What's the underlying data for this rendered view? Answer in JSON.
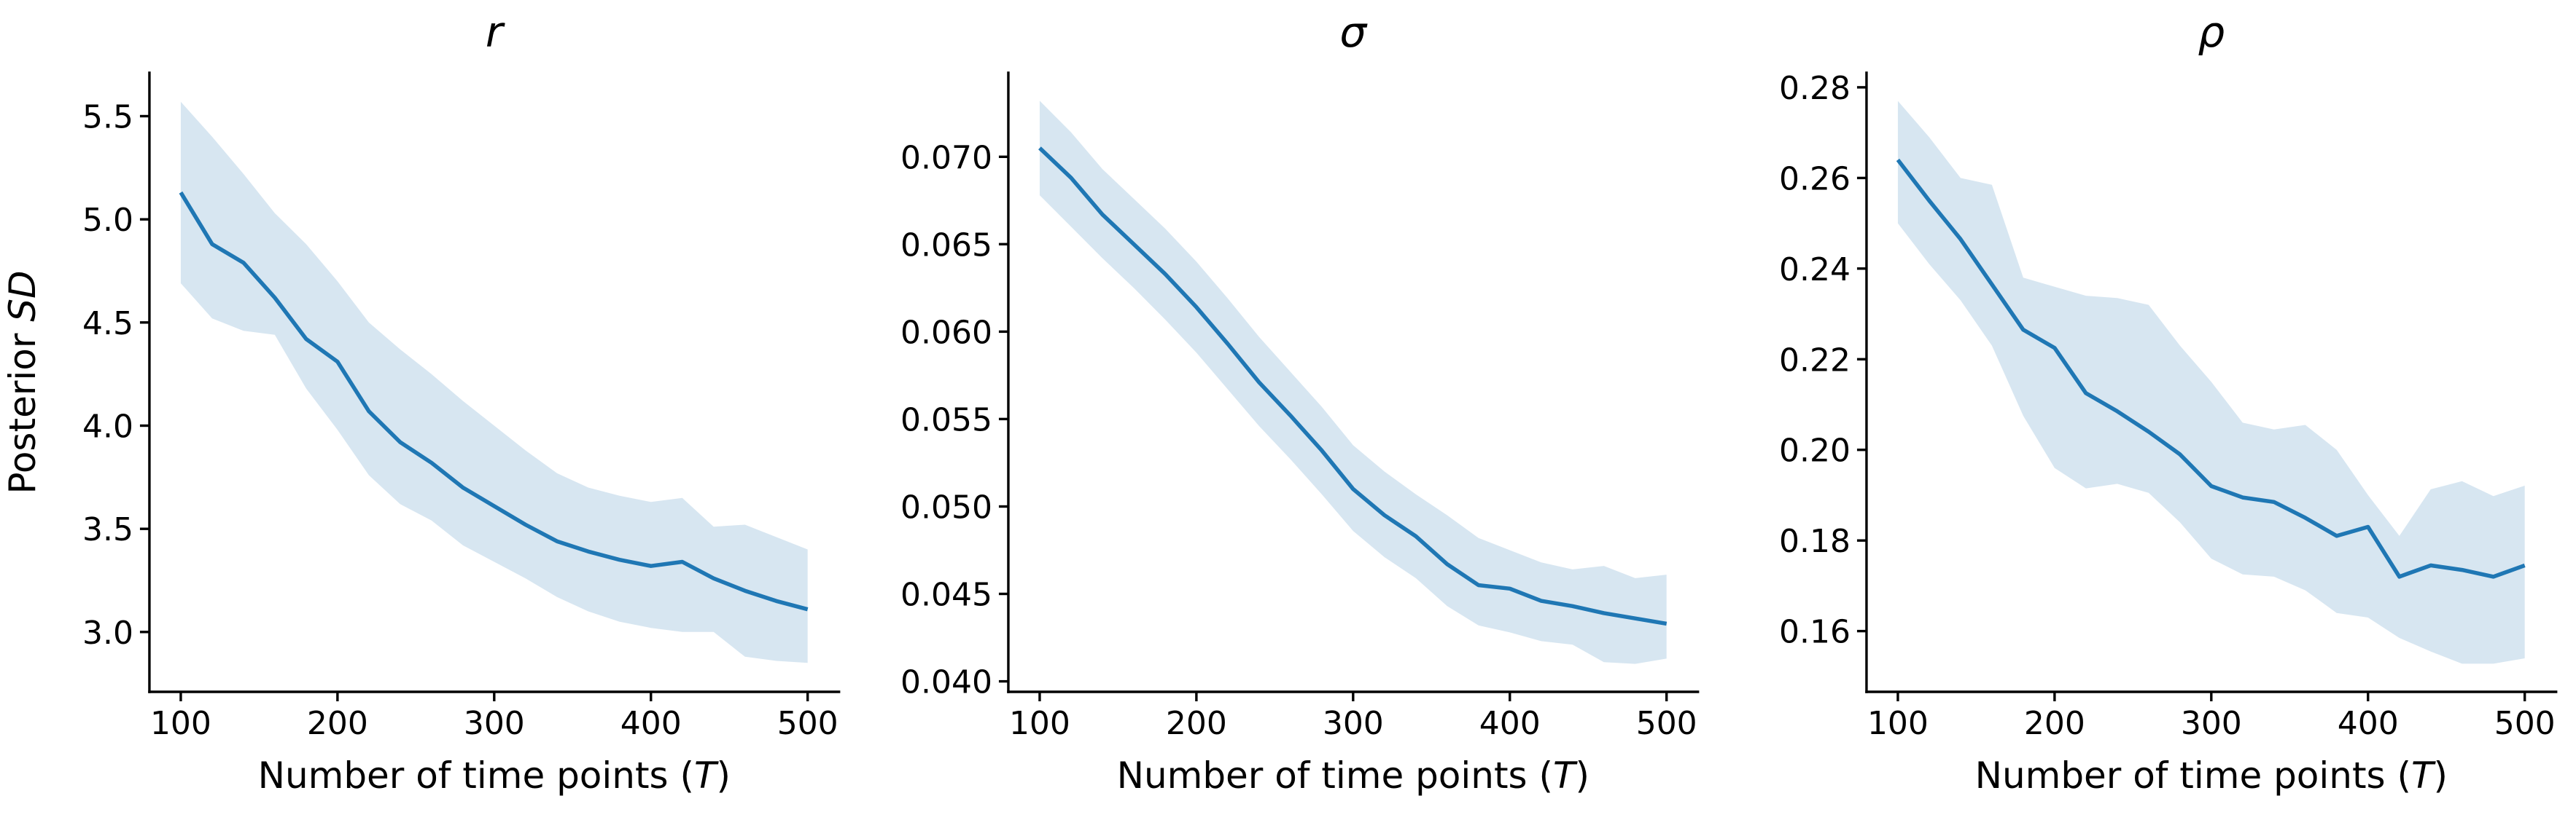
{
  "figure": {
    "background": "#ffffff",
    "axis_color": "#000000",
    "text_color": "#000000",
    "line_color": "#1f77b4",
    "band_color": "#1f77b4",
    "band_opacity": 0.18,
    "ylabel": "Posterior SD",
    "ylabel_parts": [
      "Posterior ",
      "SD"
    ],
    "xlabel": "Number of time points (T)",
    "xlabel_parts": [
      "Number of time points (",
      "T",
      ")"
    ]
  },
  "chart_data": [
    {
      "type": "line",
      "title": "r",
      "ylabel": "Posterior SD",
      "xlabel": "Number of time points (T)",
      "legend_position": "none",
      "grid": false,
      "x": [
        100,
        120,
        140,
        160,
        180,
        200,
        220,
        240,
        260,
        280,
        300,
        320,
        340,
        360,
        380,
        400,
        420,
        440,
        460,
        480,
        500
      ],
      "y": [
        5.13,
        4.88,
        4.79,
        4.62,
        4.42,
        4.31,
        4.07,
        3.92,
        3.82,
        3.7,
        3.61,
        3.52,
        3.44,
        3.39,
        3.35,
        3.32,
        3.34,
        3.26,
        3.2,
        3.15,
        3.11
      ],
      "band_lower": [
        4.69,
        4.52,
        4.46,
        4.44,
        4.18,
        3.98,
        3.76,
        3.62,
        3.54,
        3.42,
        3.34,
        3.26,
        3.17,
        3.1,
        3.05,
        3.02,
        3.0,
        3.0,
        2.88,
        2.86,
        2.85
      ],
      "band_upper": [
        5.57,
        5.4,
        5.22,
        5.03,
        4.88,
        4.7,
        4.5,
        4.37,
        4.25,
        4.12,
        4.0,
        3.88,
        3.77,
        3.7,
        3.66,
        3.63,
        3.65,
        3.51,
        3.52,
        3.46,
        3.4
      ],
      "xticks": [
        100,
        200,
        300,
        400,
        500
      ],
      "xtick_labels": [
        "100",
        "200",
        "300",
        "400",
        "500"
      ],
      "ytick_values": [
        3.0,
        3.5,
        4.0,
        4.5,
        5.0,
        5.5
      ],
      "ytick_labels": [
        "3.0",
        "3.5",
        "4.0",
        "4.5",
        "5.0",
        "5.5"
      ],
      "xlim": [
        80,
        520
      ],
      "ylim": [
        2.71,
        5.71
      ]
    },
    {
      "type": "line",
      "title": "σ",
      "xlabel": "Number of time points (T)",
      "legend_position": "none",
      "grid": false,
      "x": [
        100,
        120,
        140,
        160,
        180,
        200,
        220,
        240,
        260,
        280,
        300,
        320,
        340,
        360,
        380,
        400,
        420,
        440,
        460,
        480,
        500
      ],
      "y": [
        0.0705,
        0.0688,
        0.0667,
        0.065,
        0.0633,
        0.0614,
        0.0593,
        0.0571,
        0.0552,
        0.0532,
        0.051,
        0.0495,
        0.0483,
        0.0467,
        0.0455,
        0.0453,
        0.0446,
        0.0443,
        0.0439,
        0.0436,
        0.0433
      ],
      "band_lower": [
        0.0678,
        0.066,
        0.0642,
        0.0625,
        0.0607,
        0.0588,
        0.0567,
        0.0546,
        0.0527,
        0.0507,
        0.0486,
        0.0471,
        0.0459,
        0.0443,
        0.0432,
        0.0428,
        0.0423,
        0.0421,
        0.0411,
        0.041,
        0.0413
      ],
      "band_upper": [
        0.0732,
        0.0714,
        0.0693,
        0.0676,
        0.0659,
        0.064,
        0.0619,
        0.0597,
        0.0577,
        0.0557,
        0.0535,
        0.052,
        0.0507,
        0.0495,
        0.0482,
        0.0475,
        0.0468,
        0.0464,
        0.0466,
        0.0459,
        0.0461
      ],
      "xticks": [
        100,
        200,
        300,
        400,
        500
      ],
      "xtick_labels": [
        "100",
        "200",
        "300",
        "400",
        "500"
      ],
      "ytick_values": [
        0.04,
        0.045,
        0.05,
        0.055,
        0.06,
        0.065,
        0.07
      ],
      "ytick_labels": [
        "0.040",
        "0.045",
        "0.050",
        "0.055",
        "0.060",
        "0.065",
        "0.070"
      ],
      "xlim": [
        80,
        520
      ],
      "ylim": [
        0.0394,
        0.0748
      ]
    },
    {
      "type": "line",
      "title": "ρ",
      "xlabel": "Number of time points (T)",
      "legend_position": "none",
      "grid": false,
      "x": [
        100,
        120,
        140,
        160,
        180,
        200,
        220,
        240,
        260,
        280,
        300,
        320,
        340,
        360,
        380,
        400,
        420,
        440,
        460,
        480,
        500
      ],
      "y": [
        0.264,
        0.255,
        0.2465,
        0.2365,
        0.2265,
        0.2225,
        0.2125,
        0.2085,
        0.204,
        0.199,
        0.192,
        0.1895,
        0.1885,
        0.185,
        0.181,
        0.183,
        0.172,
        0.1745,
        0.1735,
        0.172,
        0.1745
      ],
      "band_lower": [
        0.25,
        0.241,
        0.233,
        0.223,
        0.2075,
        0.196,
        0.1915,
        0.1925,
        0.1905,
        0.184,
        0.176,
        0.1725,
        0.172,
        0.169,
        0.164,
        0.163,
        0.1585,
        0.1555,
        0.1528,
        0.1528,
        0.154
      ],
      "band_upper": [
        0.277,
        0.269,
        0.26,
        0.2585,
        0.238,
        0.236,
        0.234,
        0.2335,
        0.232,
        0.223,
        0.215,
        0.206,
        0.2045,
        0.2055,
        0.2,
        0.19,
        0.181,
        0.1913,
        0.1931,
        0.1898,
        0.1921
      ],
      "xticks": [
        100,
        200,
        300,
        400,
        500
      ],
      "xtick_labels": [
        "100",
        "200",
        "300",
        "400",
        "500"
      ],
      "ytick_values": [
        0.16,
        0.18,
        0.2,
        0.22,
        0.24,
        0.26,
        0.28
      ],
      "ytick_labels": [
        "0.16",
        "0.18",
        "0.20",
        "0.22",
        "0.24",
        "0.26",
        "0.28"
      ],
      "xlim": [
        80,
        520
      ],
      "ylim": [
        0.1466,
        0.2832
      ]
    }
  ]
}
